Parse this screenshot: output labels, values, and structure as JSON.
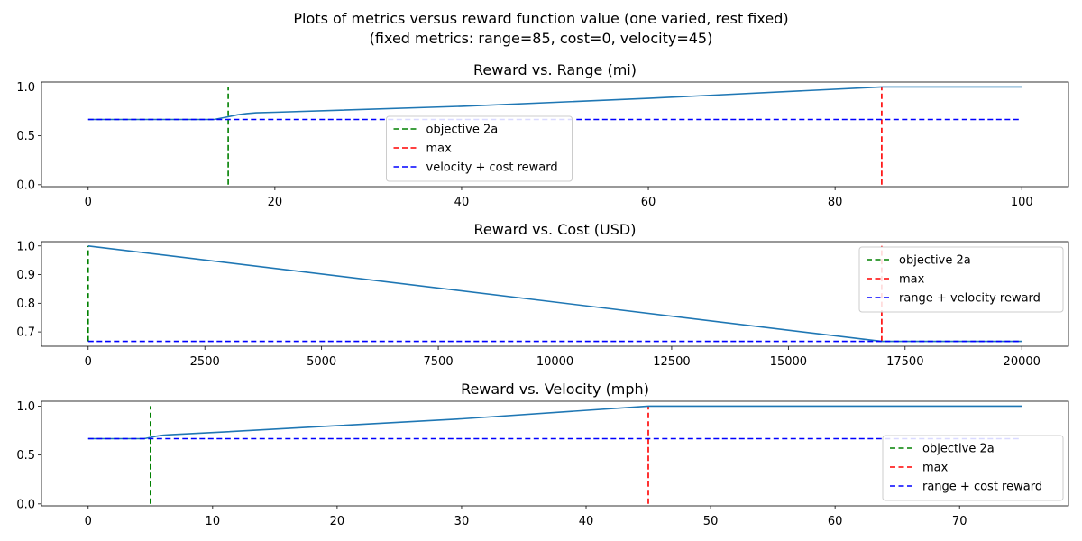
{
  "suptitle": {
    "line1": "Plots of metrics versus reward function value (one varied, rest fixed)",
    "line2": "(fixed metrics: range=85, cost=0, velocity=45)"
  },
  "colors": {
    "curve": "#1f77b4",
    "objective": "#008000",
    "max": "#ff0000",
    "baseline": "#0000ff"
  },
  "chart_data": [
    {
      "type": "line",
      "title": "Reward vs. Range (mi)",
      "xlim": [
        -5,
        105
      ],
      "ylim": [
        -0.02,
        1.05
      ],
      "xticks": [
        0,
        20,
        40,
        60,
        80,
        100
      ],
      "yticks": [
        "0.0",
        "0.5",
        "1.0"
      ],
      "series": [
        {
          "role": "curve",
          "x": [
            0,
            13.5,
            15,
            16,
            17,
            18,
            20,
            40,
            60,
            85,
            100
          ],
          "y": [
            0.667,
            0.667,
            0.695,
            0.715,
            0.728,
            0.735,
            0.741,
            0.802,
            0.883,
            1.0,
            1.0
          ]
        },
        {
          "role": "objective",
          "name": "objective 2a",
          "x": [
            15,
            15
          ],
          "y": [
            0,
            1.0
          ]
        },
        {
          "role": "max",
          "name": "max",
          "x": [
            85,
            85
          ],
          "y": [
            0,
            1.0
          ]
        },
        {
          "role": "baseline",
          "name": "velocity + cost reward",
          "x": [
            0,
            100
          ],
          "y": [
            0.667,
            0.667
          ]
        }
      ],
      "legend": {
        "position": "lower-center",
        "entries": [
          "objective 2a",
          "max",
          "velocity + cost reward"
        ]
      }
    },
    {
      "type": "line",
      "title": "Reward vs. Cost (USD)",
      "xlim": [
        -1000,
        21000
      ],
      "ylim": [
        0.65,
        1.015
      ],
      "xticks": [
        0,
        2500,
        5000,
        7500,
        10000,
        12500,
        15000,
        17500,
        20000
      ],
      "yticks": [
        "0.7",
        "0.8",
        "0.9",
        "1.0"
      ],
      "series": [
        {
          "role": "curve",
          "x": [
            0,
            17000,
            20000
          ],
          "y": [
            1.0,
            0.667,
            0.667
          ]
        },
        {
          "role": "objective",
          "name": "objective 2a",
          "x": [
            0,
            0
          ],
          "y": [
            0.667,
            1.0
          ]
        },
        {
          "role": "max",
          "name": "max",
          "x": [
            17000,
            17000
          ],
          "y": [
            0.667,
            1.0
          ]
        },
        {
          "role": "baseline",
          "name": "range + velocity reward",
          "x": [
            0,
            20000
          ],
          "y": [
            0.667,
            0.667
          ]
        }
      ],
      "legend": {
        "position": "upper-right",
        "entries": [
          "objective 2a",
          "max",
          "range + velocity reward"
        ]
      }
    },
    {
      "type": "line",
      "title": "Reward vs. Velocity (mph)",
      "xlim": [
        -3.75,
        78.75
      ],
      "ylim": [
        -0.02,
        1.05
      ],
      "xticks": [
        0,
        10,
        20,
        30,
        40,
        50,
        60,
        70
      ],
      "yticks": [
        "0.0",
        "0.5",
        "1.0"
      ],
      "series": [
        {
          "role": "curve",
          "x": [
            0,
            4.5,
            5,
            5.5,
            6,
            6.5,
            7,
            10,
            20,
            30,
            45,
            75
          ],
          "y": [
            0.667,
            0.667,
            0.68,
            0.693,
            0.702,
            0.707,
            0.711,
            0.73,
            0.8,
            0.87,
            1.0,
            1.0
          ]
        },
        {
          "role": "objective",
          "name": "objective 2a",
          "x": [
            5,
            5
          ],
          "y": [
            0,
            1.0
          ]
        },
        {
          "role": "max",
          "name": "max",
          "x": [
            45,
            45
          ],
          "y": [
            0,
            1.0
          ]
        },
        {
          "role": "baseline",
          "name": "range + cost reward",
          "x": [
            0,
            75
          ],
          "y": [
            0.667,
            0.667
          ]
        }
      ],
      "legend": {
        "position": "lower-right",
        "entries": [
          "objective 2a",
          "max",
          "range + cost reward"
        ]
      }
    }
  ]
}
